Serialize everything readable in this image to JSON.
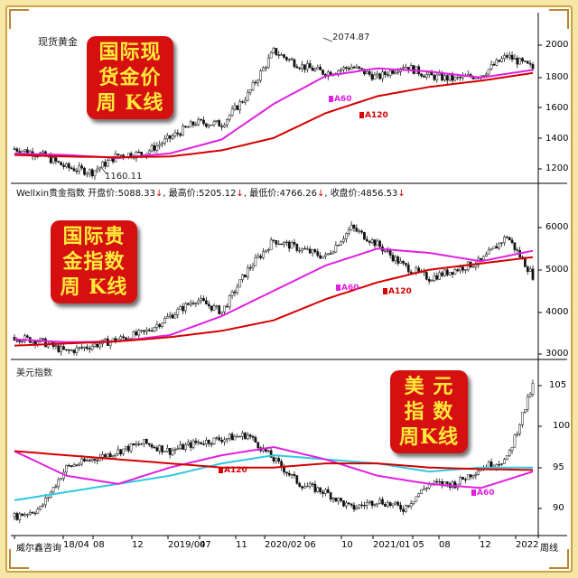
{
  "panels": {
    "gold": {
      "name": "现货黄金",
      "banner": [
        "国际现",
        "货金价",
        "周 K线"
      ],
      "yticks": [
        1200,
        1400,
        1600,
        1800,
        2000
      ],
      "peak_label": "2074.87",
      "trough_label": "1160.11",
      "ma_short": "A60",
      "ma_long": "A120"
    },
    "index": {
      "name": "Wellxin贵金指数",
      "open_label": "开盘价:",
      "open": "5088.33",
      "high_label": "最高价:",
      "high": "5205.12",
      "low_label": "最低价:",
      "low": "4766.26",
      "close_label": "收盘价:",
      "close": "4856.53",
      "down_arrow": "↓",
      "banner": [
        "国际贵",
        "金指数",
        "周 K线"
      ],
      "yticks": [
        3000,
        4000,
        5000,
        6000
      ],
      "ma_short": "A60",
      "ma_long": "A120"
    },
    "usd": {
      "name": "美元指数",
      "banner": [
        "美  元",
        "指  数",
        "周K线"
      ],
      "yticks": [
        90,
        95,
        100,
        105
      ],
      "ma_short": "A60",
      "ma_long": "A120"
    }
  },
  "x_axis": {
    "labels": [
      "威尔鑫咨询",
      "18/04",
      "08",
      "12",
      "2019/04",
      "07",
      "11",
      "2020/02",
      "06",
      "10",
      "2021/01",
      "05",
      "08",
      "12",
      "2022",
      "周线"
    ]
  },
  "colors": {
    "candle": "#111111",
    "ma60": "#e020e0",
    "ma120": "#d40000",
    "usd_cyan": "#30c8e0",
    "banner_red": "#d61010",
    "banner_text": "#ffea3a"
  },
  "chart_data": [
    {
      "type": "line",
      "title": "现货黄金",
      "series": [
        {
          "name": "现货黄金",
          "x": [
            0,
            10,
            20,
            30,
            40,
            50,
            60,
            70,
            80,
            90,
            100,
            110,
            120,
            130,
            140,
            150,
            160,
            170,
            180,
            190,
            200
          ],
          "values": [
            1330,
            1295,
            1210,
            1180,
            1290,
            1300,
            1400,
            1500,
            1490,
            1680,
            1960,
            1870,
            1820,
            1860,
            1790,
            1870,
            1800,
            1780,
            1810,
            1930,
            1850
          ]
        },
        {
          "name": "A60",
          "x": [
            0,
            20,
            40,
            60,
            80,
            100,
            120,
            140,
            160,
            180,
            200
          ],
          "values": [
            1300,
            1290,
            1270,
            1300,
            1390,
            1620,
            1800,
            1850,
            1830,
            1790,
            1840
          ]
        },
        {
          "name": "A120",
          "x": [
            0,
            20,
            40,
            60,
            80,
            100,
            120,
            140,
            160,
            180,
            200
          ],
          "values": [
            1290,
            1280,
            1275,
            1280,
            1320,
            1400,
            1560,
            1670,
            1730,
            1770,
            1820
          ]
        }
      ],
      "ylim": [
        1100,
        2150
      ]
    },
    {
      "type": "line",
      "title": "Wellxin贵金指数",
      "series": [
        {
          "name": "Wellxin贵金指数",
          "x": [
            0,
            10,
            20,
            30,
            40,
            50,
            60,
            70,
            80,
            90,
            100,
            110,
            120,
            130,
            140,
            150,
            160,
            170,
            180,
            190,
            200
          ],
          "values": [
            3400,
            3300,
            3050,
            3200,
            3350,
            3500,
            3900,
            4300,
            4000,
            5000,
            5700,
            5500,
            5300,
            6000,
            5600,
            5100,
            4800,
            5000,
            5200,
            5800,
            4856
          ]
        },
        {
          "name": "A60",
          "x": [
            0,
            20,
            40,
            60,
            80,
            100,
            120,
            140,
            160,
            180,
            200
          ],
          "values": [
            3350,
            3280,
            3300,
            3450,
            3900,
            4500,
            5100,
            5500,
            5400,
            5200,
            5450
          ]
        },
        {
          "name": "A120",
          "x": [
            0,
            20,
            40,
            60,
            80,
            100,
            120,
            140,
            160,
            180,
            200
          ],
          "values": [
            3200,
            3250,
            3300,
            3400,
            3550,
            3800,
            4300,
            4700,
            5000,
            5150,
            5300
          ]
        }
      ],
      "ylim": [
        2900,
        6600
      ]
    },
    {
      "type": "line",
      "title": "美元指数",
      "series": [
        {
          "name": "美元指数",
          "x": [
            0,
            10,
            20,
            30,
            40,
            50,
            60,
            70,
            80,
            90,
            100,
            110,
            120,
            130,
            140,
            150,
            160,
            170,
            180,
            190,
            200
          ],
          "values": [
            89,
            90,
            95,
            96,
            97,
            98,
            97,
            98,
            98.5,
            99,
            96,
            93,
            92,
            90,
            91,
            90,
            93,
            93,
            95,
            96,
            105
          ]
        },
        {
          "name": "A60",
          "x": [
            0,
            20,
            40,
            60,
            80,
            100,
            120,
            140,
            160,
            180,
            200
          ],
          "values": [
            97,
            94,
            93,
            95,
            96.5,
            97.5,
            96,
            94,
            93,
            92.5,
            94.5
          ]
        },
        {
          "name": "A120",
          "x": [
            0,
            20,
            40,
            60,
            80,
            100,
            120,
            140,
            160,
            180,
            200
          ],
          "values": [
            97,
            96.5,
            96,
            95.5,
            95,
            95,
            95.5,
            95.5,
            95,
            94.8,
            94.7
          ]
        },
        {
          "x": [
            0,
            20,
            40,
            60,
            80,
            100,
            120,
            140,
            160,
            180,
            200
          ],
          "values": [
            91,
            92,
            93,
            94,
            95.5,
            96.5,
            96,
            95.5,
            94.5,
            95,
            95
          ]
        }
      ],
      "ylim": [
        88,
        107
      ]
    }
  ]
}
